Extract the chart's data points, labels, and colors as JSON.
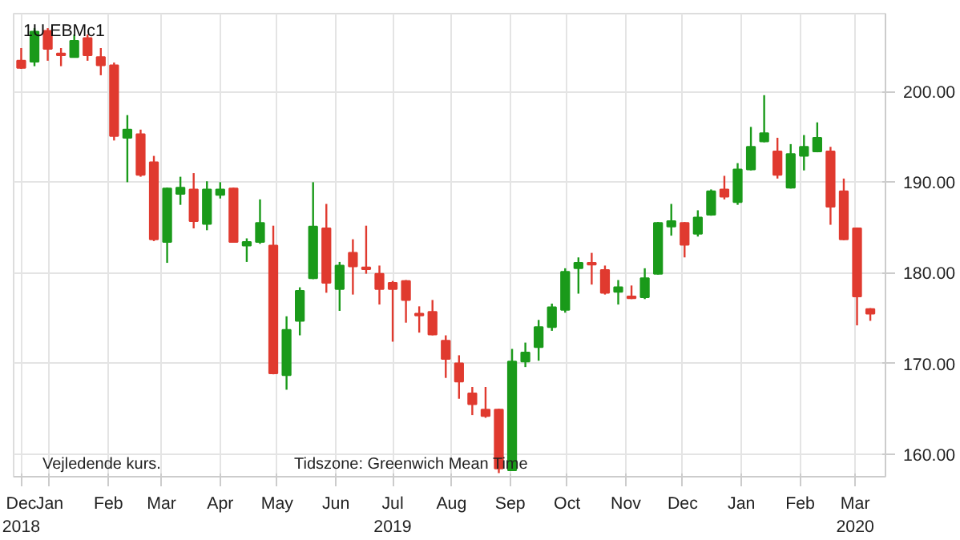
{
  "chart_data": {
    "type": "candlestick",
    "title": "1U   EBMc1",
    "annotations": [
      "Vejledende kurs.",
      "Tidszone: Greenwich Mean Time"
    ],
    "x": [
      "2018-12-17",
      "2018-12-24",
      "2018-12-31",
      "2019-01-07",
      "2019-01-14",
      "2019-01-21",
      "2019-01-28",
      "2019-02-04",
      "2019-02-11",
      "2019-02-18",
      "2019-02-25",
      "2019-03-04",
      "2019-03-11",
      "2019-03-18",
      "2019-03-25",
      "2019-04-01",
      "2019-04-08",
      "2019-04-15",
      "2019-04-22",
      "2019-04-29",
      "2019-05-06",
      "2019-05-13",
      "2019-05-20",
      "2019-05-27",
      "2019-06-03",
      "2019-06-10",
      "2019-06-17",
      "2019-06-24",
      "2019-07-01",
      "2019-07-08",
      "2019-07-15",
      "2019-07-22",
      "2019-07-29",
      "2019-08-05",
      "2019-08-12",
      "2019-08-19",
      "2019-08-26",
      "2019-09-02",
      "2019-09-09",
      "2019-09-16",
      "2019-09-23",
      "2019-09-30",
      "2019-10-07",
      "2019-10-14",
      "2019-10-21",
      "2019-10-28",
      "2019-11-04",
      "2019-11-11",
      "2019-11-18",
      "2019-11-25",
      "2019-12-02",
      "2019-12-09",
      "2019-12-16",
      "2019-12-23",
      "2019-12-30",
      "2020-01-06",
      "2020-01-13",
      "2020-01-20",
      "2020-01-27",
      "2020-02-03",
      "2020-02-10",
      "2020-02-17",
      "2020-02-24",
      "2020-03-02",
      "2020-03-09"
    ],
    "ohlc": [
      [
        203.4,
        204.8,
        202.5,
        202.6
      ],
      [
        203.3,
        207.0,
        202.8,
        206.6
      ],
      [
        206.7,
        207.0,
        203.4,
        204.7
      ],
      [
        204.2,
        204.8,
        202.8,
        204.0
      ],
      [
        203.8,
        206.3,
        203.8,
        205.6
      ],
      [
        205.9,
        206.3,
        203.4,
        204.0
      ],
      [
        203.8,
        204.8,
        201.8,
        202.9
      ],
      [
        202.9,
        203.2,
        194.6,
        195.1
      ],
      [
        194.9,
        197.4,
        190.0,
        195.8
      ],
      [
        195.3,
        195.8,
        190.6,
        190.8
      ],
      [
        192.2,
        192.9,
        183.5,
        183.7
      ],
      [
        183.4,
        189.4,
        181.1,
        189.3
      ],
      [
        188.7,
        190.6,
        187.5,
        189.4
      ],
      [
        189.2,
        191.0,
        184.9,
        185.7
      ],
      [
        185.4,
        190.1,
        184.7,
        189.2
      ],
      [
        188.6,
        190.0,
        188.2,
        189.2
      ],
      [
        189.3,
        189.4,
        183.4,
        183.4
      ],
      [
        183.0,
        183.8,
        181.2,
        183.4
      ],
      [
        183.4,
        188.1,
        183.2,
        185.5
      ],
      [
        183.0,
        185.2,
        168.8,
        168.9
      ],
      [
        168.7,
        175.2,
        167.1,
        173.7
      ],
      [
        174.7,
        178.4,
        173.1,
        178.0
      ],
      [
        179.4,
        190.0,
        179.3,
        185.1
      ],
      [
        184.9,
        187.6,
        177.8,
        178.9
      ],
      [
        178.2,
        181.2,
        175.8,
        180.8
      ],
      [
        182.2,
        183.7,
        177.6,
        180.7
      ],
      [
        180.6,
        185.2,
        179.9,
        180.4
      ],
      [
        179.9,
        180.8,
        176.5,
        178.2
      ],
      [
        178.9,
        179.1,
        172.4,
        178.2
      ],
      [
        179.1,
        179.2,
        174.5,
        177.0
      ],
      [
        175.5,
        176.3,
        173.4,
        175.3
      ],
      [
        175.7,
        177.0,
        173.1,
        173.2
      ],
      [
        172.5,
        173.1,
        168.4,
        170.5
      ],
      [
        170.0,
        170.9,
        166.1,
        168.0
      ],
      [
        166.7,
        167.4,
        164.3,
        165.5
      ],
      [
        164.9,
        167.4,
        164.0,
        164.2
      ],
      [
        164.9,
        165.0,
        157.9,
        158.4
      ],
      [
        158.2,
        171.6,
        158.2,
        170.2
      ],
      [
        170.2,
        172.3,
        169.6,
        171.2
      ],
      [
        171.8,
        174.8,
        170.3,
        174.0
      ],
      [
        174.0,
        176.6,
        173.6,
        176.2
      ],
      [
        175.9,
        180.5,
        175.6,
        180.1
      ],
      [
        180.5,
        181.7,
        177.7,
        181.1
      ],
      [
        181.1,
        182.2,
        178.7,
        180.9
      ],
      [
        180.3,
        180.8,
        177.6,
        177.8
      ],
      [
        177.9,
        179.2,
        176.5,
        178.4
      ],
      [
        177.4,
        178.6,
        177.1,
        177.2
      ],
      [
        177.3,
        180.5,
        177.1,
        179.4
      ],
      [
        179.9,
        185.6,
        179.8,
        185.5
      ],
      [
        185.1,
        187.6,
        184.1,
        185.7
      ],
      [
        185.5,
        185.6,
        181.7,
        183.1
      ],
      [
        184.3,
        186.9,
        184.0,
        186.1
      ],
      [
        186.4,
        189.2,
        186.3,
        189.0
      ],
      [
        189.2,
        190.7,
        188.1,
        188.4
      ],
      [
        187.8,
        192.1,
        187.5,
        191.4
      ],
      [
        191.4,
        196.1,
        191.3,
        193.9
      ],
      [
        194.5,
        199.6,
        194.4,
        195.4
      ],
      [
        193.4,
        194.9,
        190.4,
        190.8
      ],
      [
        189.4,
        194.2,
        189.3,
        193.1
      ],
      [
        192.9,
        195.2,
        191.3,
        193.9
      ],
      [
        193.4,
        196.6,
        193.3,
        194.9
      ],
      [
        193.4,
        193.9,
        185.3,
        187.3
      ],
      [
        189.0,
        190.4,
        183.6,
        183.7
      ],
      [
        184.9,
        185.0,
        174.2,
        177.4
      ],
      [
        176.0,
        176.1,
        174.7,
        175.5
      ]
    ],
    "colors": [
      "#e03a2f",
      "#1a9a1a",
      "#e03a2f",
      "#e03a2f",
      "#1a9a1a",
      "#e03a2f",
      "#e03a2f",
      "#e03a2f",
      "#1a9a1a",
      "#e03a2f",
      "#e03a2f",
      "#1a9a1a",
      "#1a9a1a",
      "#e03a2f",
      "#1a9a1a",
      "#1a9a1a",
      "#e03a2f",
      "#1a9a1a",
      "#1a9a1a",
      "#e03a2f",
      "#1a9a1a",
      "#1a9a1a",
      "#1a9a1a",
      "#e03a2f",
      "#1a9a1a",
      "#e03a2f",
      "#e03a2f",
      "#e03a2f",
      "#e03a2f",
      "#e03a2f",
      "#e03a2f",
      "#e03a2f",
      "#e03a2f",
      "#e03a2f",
      "#e03a2f",
      "#e03a2f",
      "#e03a2f",
      "#1a9a1a",
      "#1a9a1a",
      "#1a9a1a",
      "#1a9a1a",
      "#1a9a1a",
      "#1a9a1a",
      "#e03a2f",
      "#e03a2f",
      "#1a9a1a",
      "#e03a2f",
      "#1a9a1a",
      "#1a9a1a",
      "#1a9a1a",
      "#e03a2f",
      "#1a9a1a",
      "#1a9a1a",
      "#e03a2f",
      "#1a9a1a",
      "#1a9a1a",
      "#1a9a1a",
      "#e03a2f",
      "#1a9a1a",
      "#1a9a1a",
      "#1a9a1a",
      "#e03a2f",
      "#e03a2f",
      "#e03a2f",
      "#e03a2f"
    ],
    "xlim": [
      "2018-12-13",
      "2020-03-17"
    ],
    "xticks": [
      {
        "value": "2018-12-17",
        "label": "Dec\n2018"
      },
      {
        "value": "2019-01-01",
        "label": "Jan"
      },
      {
        "value": "2019-02-01",
        "label": "Feb"
      },
      {
        "value": "2019-03-01",
        "label": "Mar"
      },
      {
        "value": "2019-04-01",
        "label": "Apr"
      },
      {
        "value": "2019-05-01",
        "label": "May"
      },
      {
        "value": "2019-06-01",
        "label": "Jun"
      },
      {
        "value": "2019-07-01",
        "label": "Jul\n2019"
      },
      {
        "value": "2019-08-01",
        "label": "Aug"
      },
      {
        "value": "2019-09-01",
        "label": "Sep"
      },
      {
        "value": "2019-10-01",
        "label": "Oct"
      },
      {
        "value": "2019-11-01",
        "label": "Nov"
      },
      {
        "value": "2019-12-01",
        "label": "Dec"
      },
      {
        "value": "2020-01-01",
        "label": "Jan"
      },
      {
        "value": "2020-02-01",
        "label": "Feb"
      },
      {
        "value": "2020-03-01",
        "label": "Mar\n2020"
      }
    ],
    "ylim": [
      157.5,
      208.6
    ],
    "yticks": [
      {
        "value": 160,
        "label": "160.00"
      },
      {
        "value": 170,
        "label": "170.00"
      },
      {
        "value": 180,
        "label": "180.00"
      },
      {
        "value": 190,
        "label": "190.00"
      },
      {
        "value": 200,
        "label": "200.00"
      }
    ],
    "grid": true
  }
}
